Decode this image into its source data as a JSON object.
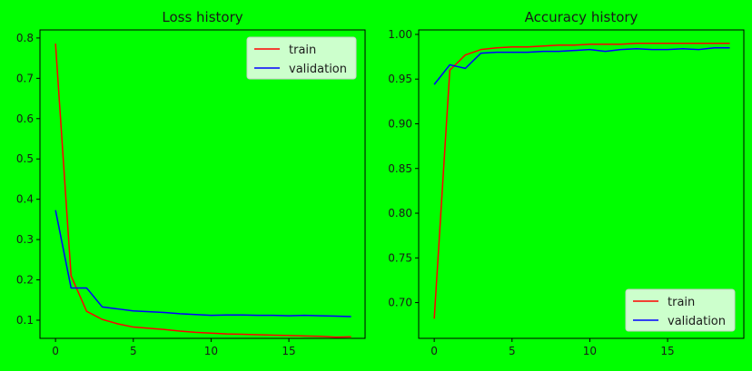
{
  "chart_data": [
    {
      "type": "line",
      "title": "Loss history",
      "xlabel": "",
      "ylabel": "",
      "xlim": [
        -1,
        19.9
      ],
      "ylim": [
        0.055,
        0.82
      ],
      "xticks": [
        0,
        5,
        10,
        15
      ],
      "yticks": [
        0.1,
        0.2,
        0.3,
        0.4,
        0.5,
        0.6,
        0.7,
        0.8
      ],
      "grid": false,
      "legend": "top-right",
      "x": [
        0,
        1,
        2,
        3,
        4,
        5,
        6,
        7,
        8,
        9,
        10,
        11,
        12,
        13,
        14,
        15,
        16,
        17,
        18,
        19
      ],
      "series": [
        {
          "name": "train",
          "color": "#ff0000",
          "values": [
            0.786,
            0.21,
            0.122,
            0.102,
            0.091,
            0.083,
            0.08,
            0.077,
            0.073,
            0.07,
            0.068,
            0.066,
            0.065,
            0.064,
            0.063,
            0.062,
            0.061,
            0.06,
            0.058,
            0.059
          ]
        },
        {
          "name": "validation",
          "color": "#0000ff",
          "values": [
            0.373,
            0.18,
            0.18,
            0.133,
            0.128,
            0.123,
            0.121,
            0.119,
            0.116,
            0.114,
            0.112,
            0.113,
            0.113,
            0.112,
            0.112,
            0.111,
            0.112,
            0.111,
            0.11,
            0.109
          ]
        }
      ]
    },
    {
      "type": "line",
      "title": "Accuracy history",
      "xlabel": "",
      "ylabel": "",
      "xlim": [
        -1,
        19.9
      ],
      "ylim": [
        0.66,
        1.005
      ],
      "xticks": [
        0,
        5,
        10,
        15
      ],
      "yticks": [
        0.7,
        0.75,
        0.8,
        0.85,
        0.9,
        0.95,
        1.0
      ],
      "ytick_labels": [
        "0.70",
        "0.75",
        "0.80",
        "0.85",
        "0.90",
        "0.95",
        "1.00"
      ],
      "grid": false,
      "legend": "bottom-right",
      "x": [
        0,
        1,
        2,
        3,
        4,
        5,
        6,
        7,
        8,
        9,
        10,
        11,
        12,
        13,
        14,
        15,
        16,
        17,
        18,
        19
      ],
      "series": [
        {
          "name": "train",
          "color": "#ff0000",
          "values": [
            0.682,
            0.96,
            0.977,
            0.983,
            0.985,
            0.986,
            0.986,
            0.987,
            0.988,
            0.988,
            0.989,
            0.989,
            0.989,
            0.99,
            0.99,
            0.99,
            0.99,
            0.99,
            0.99,
            0.99
          ]
        },
        {
          "name": "validation",
          "color": "#0000ff",
          "values": [
            0.944,
            0.966,
            0.962,
            0.979,
            0.98,
            0.98,
            0.98,
            0.981,
            0.981,
            0.982,
            0.983,
            0.981,
            0.983,
            0.984,
            0.983,
            0.983,
            0.984,
            0.983,
            0.985,
            0.985
          ]
        }
      ]
    }
  ]
}
